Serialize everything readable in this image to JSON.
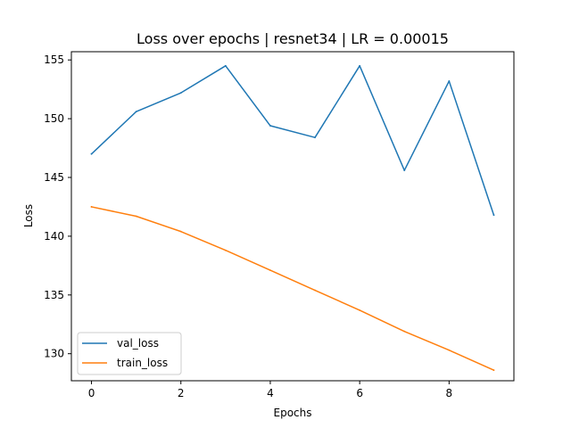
{
  "chart_data": {
    "type": "line",
    "title": "Loss over epochs | resnet34 | LR = 0.00015",
    "xlabel": "Epochs",
    "ylabel": "Loss",
    "x": [
      0,
      1,
      2,
      3,
      4,
      5,
      6,
      7,
      8,
      9
    ],
    "xlim": [
      -0.45,
      9.45
    ],
    "ylim": [
      127.7,
      155.7
    ],
    "xticks": [
      0,
      2,
      4,
      6,
      8
    ],
    "yticks": [
      130,
      135,
      140,
      145,
      150,
      155
    ],
    "grid": false,
    "legend_position": "lower-left",
    "series": [
      {
        "name": "val_loss",
        "color": "#1f77b4",
        "values": [
          147.0,
          150.6,
          152.2,
          154.5,
          149.4,
          148.4,
          154.5,
          145.6,
          153.2,
          141.8
        ]
      },
      {
        "name": "train_loss",
        "color": "#ff7f0e",
        "values": [
          142.5,
          141.7,
          140.4,
          138.8,
          137.1,
          135.4,
          133.7,
          131.9,
          130.3,
          128.6
        ]
      }
    ]
  }
}
